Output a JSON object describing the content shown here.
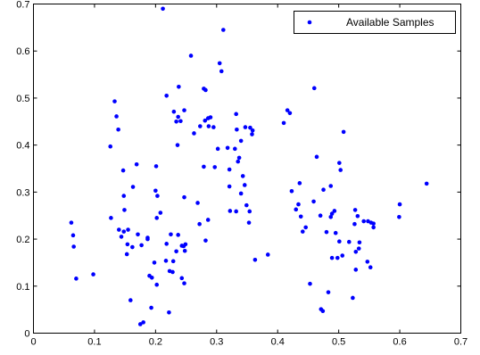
{
  "chart_data": {
    "type": "scatter",
    "title": "",
    "xlabel": "",
    "ylabel": "",
    "xlim": [
      0,
      0.7
    ],
    "ylim": [
      0,
      0.7
    ],
    "xticks": [
      "0",
      "0.1",
      "0.2",
      "0.3",
      "0.4",
      "0.5",
      "0.6",
      "0.7"
    ],
    "yticks": [
      "0",
      "0.1",
      "0.2",
      "0.3",
      "0.4",
      "0.5",
      "0.6",
      "0.7"
    ],
    "grid": false,
    "legend_position": "top-right",
    "marker_color": "#0000ff",
    "series": [
      {
        "name": "Available Samples",
        "points": [
          [
            0.212,
            0.69
          ],
          [
            0.311,
            0.645
          ],
          [
            0.258,
            0.59
          ],
          [
            0.305,
            0.574
          ],
          [
            0.308,
            0.557
          ],
          [
            0.279,
            0.52
          ],
          [
            0.282,
            0.517
          ],
          [
            0.238,
            0.524
          ],
          [
            0.218,
            0.505
          ],
          [
            0.46,
            0.521
          ],
          [
            0.133,
            0.493
          ],
          [
            0.247,
            0.474
          ],
          [
            0.23,
            0.471
          ],
          [
            0.136,
            0.461
          ],
          [
            0.237,
            0.46
          ],
          [
            0.234,
            0.45
          ],
          [
            0.286,
            0.457
          ],
          [
            0.29,
            0.459
          ],
          [
            0.281,
            0.452
          ],
          [
            0.332,
            0.466
          ],
          [
            0.416,
            0.474
          ],
          [
            0.42,
            0.468
          ],
          [
            0.41,
            0.447
          ],
          [
            0.295,
            0.438
          ],
          [
            0.263,
            0.425
          ],
          [
            0.273,
            0.44
          ],
          [
            0.287,
            0.44
          ],
          [
            0.139,
            0.433
          ],
          [
            0.347,
            0.438
          ],
          [
            0.333,
            0.433
          ],
          [
            0.355,
            0.437
          ],
          [
            0.359,
            0.431
          ],
          [
            0.358,
            0.423
          ],
          [
            0.508,
            0.428
          ],
          [
            0.34,
            0.409
          ],
          [
            0.126,
            0.397
          ],
          [
            0.236,
            0.4
          ],
          [
            0.302,
            0.392
          ],
          [
            0.318,
            0.394
          ],
          [
            0.33,
            0.392
          ],
          [
            0.337,
            0.373
          ],
          [
            0.335,
            0.365
          ],
          [
            0.464,
            0.375
          ],
          [
            0.501,
            0.362
          ],
          [
            0.169,
            0.359
          ],
          [
            0.201,
            0.355
          ],
          [
            0.279,
            0.354
          ],
          [
            0.297,
            0.353
          ],
          [
            0.503,
            0.347
          ],
          [
            0.147,
            0.346
          ],
          [
            0.321,
            0.348
          ],
          [
            0.436,
            0.319
          ],
          [
            0.346,
            0.315
          ],
          [
            0.343,
            0.334
          ],
          [
            0.321,
            0.312
          ],
          [
            0.487,
            0.313
          ],
          [
            0.163,
            0.311
          ],
          [
            0.475,
            0.305
          ],
          [
            0.644,
            0.318
          ],
          [
            0.2,
            0.303
          ],
          [
            0.423,
            0.302
          ],
          [
            0.34,
            0.297
          ],
          [
            0.203,
            0.292
          ],
          [
            0.247,
            0.289
          ],
          [
            0.148,
            0.292
          ],
          [
            0.269,
            0.277
          ],
          [
            0.459,
            0.28
          ],
          [
            0.434,
            0.274
          ],
          [
            0.6,
            0.274
          ],
          [
            0.43,
            0.263
          ],
          [
            0.349,
            0.272
          ],
          [
            0.354,
            0.259
          ],
          [
            0.493,
            0.26
          ],
          [
            0.527,
            0.262
          ],
          [
            0.149,
            0.262
          ],
          [
            0.322,
            0.26
          ],
          [
            0.332,
            0.259
          ],
          [
            0.489,
            0.254
          ],
          [
            0.208,
            0.256
          ],
          [
            0.47,
            0.25
          ],
          [
            0.531,
            0.249
          ],
          [
            0.438,
            0.248
          ],
          [
            0.487,
            0.247
          ],
          [
            0.127,
            0.245
          ],
          [
            0.599,
            0.247
          ],
          [
            0.548,
            0.238
          ],
          [
            0.553,
            0.235
          ],
          [
            0.541,
            0.238
          ],
          [
            0.202,
            0.245
          ],
          [
            0.286,
            0.241
          ],
          [
            0.062,
            0.235
          ],
          [
            0.272,
            0.232
          ],
          [
            0.353,
            0.235
          ],
          [
            0.526,
            0.232
          ],
          [
            0.446,
            0.225
          ],
          [
            0.557,
            0.233
          ],
          [
            0.557,
            0.225
          ],
          [
            0.14,
            0.22
          ],
          [
            0.148,
            0.216
          ],
          [
            0.155,
            0.22
          ],
          [
            0.441,
            0.216
          ],
          [
            0.171,
            0.21
          ],
          [
            0.48,
            0.215
          ],
          [
            0.225,
            0.21
          ],
          [
            0.237,
            0.209
          ],
          [
            0.065,
            0.208
          ],
          [
            0.495,
            0.213
          ],
          [
            0.187,
            0.203
          ],
          [
            0.144,
            0.205
          ],
          [
            0.187,
            0.2
          ],
          [
            0.501,
            0.195
          ],
          [
            0.282,
            0.197
          ],
          [
            0.218,
            0.19
          ],
          [
            0.066,
            0.184
          ],
          [
            0.517,
            0.194
          ],
          [
            0.534,
            0.193
          ],
          [
            0.243,
            0.186
          ],
          [
            0.246,
            0.185
          ],
          [
            0.249,
            0.189
          ],
          [
            0.154,
            0.189
          ],
          [
            0.533,
            0.18
          ],
          [
            0.528,
            0.173
          ],
          [
            0.162,
            0.183
          ],
          [
            0.177,
            0.187
          ],
          [
            0.248,
            0.175
          ],
          [
            0.234,
            0.174
          ],
          [
            0.384,
            0.167
          ],
          [
            0.153,
            0.168
          ],
          [
            0.506,
            0.165
          ],
          [
            0.489,
            0.16
          ],
          [
            0.498,
            0.16
          ],
          [
            0.198,
            0.15
          ],
          [
            0.217,
            0.154
          ],
          [
            0.229,
            0.153
          ],
          [
            0.363,
            0.156
          ],
          [
            0.547,
            0.152
          ],
          [
            0.552,
            0.14
          ],
          [
            0.528,
            0.135
          ],
          [
            0.098,
            0.125
          ],
          [
            0.223,
            0.132
          ],
          [
            0.228,
            0.13
          ],
          [
            0.19,
            0.122
          ],
          [
            0.194,
            0.118
          ],
          [
            0.243,
            0.117
          ],
          [
            0.07,
            0.116
          ],
          [
            0.247,
            0.106
          ],
          [
            0.453,
            0.105
          ],
          [
            0.202,
            0.103
          ],
          [
            0.483,
            0.087
          ],
          [
            0.523,
            0.075
          ],
          [
            0.159,
            0.07
          ],
          [
            0.471,
            0.051
          ],
          [
            0.474,
            0.047
          ],
          [
            0.193,
            0.054
          ],
          [
            0.222,
            0.044
          ],
          [
            0.18,
            0.023
          ],
          [
            0.175,
            0.019
          ],
          [
            0.241,
            0.451
          ]
        ]
      }
    ]
  }
}
